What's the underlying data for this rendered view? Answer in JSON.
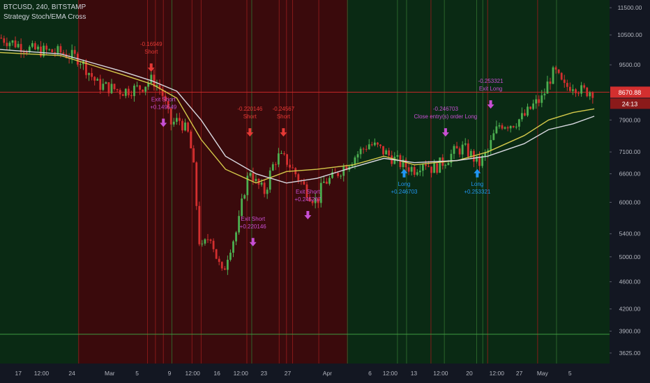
{
  "header": {
    "symbol_line": "BTCUSD, 240, BITSTAMP",
    "strategy_line": "Strategy Stoch/EMA Cross"
  },
  "colors": {
    "background": "#131722",
    "bull_zone": "#0a2a14",
    "bear_zone": "#3a0a0c",
    "candle_up": "#4caf50",
    "candle_down": "#d32f2f",
    "ema_fast": "#d4c94a",
    "ema_slow": "#d8d8e0",
    "annotation_short": "#e53935",
    "annotation_exit": "#c74fd3",
    "annotation_long": "#2196f3",
    "price_badge": "#d32f2f",
    "support_line": "#3f9a3f",
    "price_line": "#c62828",
    "axis_text": "#b2b5be"
  },
  "chart_data": {
    "type": "candlestick",
    "symbol": "BTCUSD",
    "timeframe": "240",
    "exchange": "BITSTAMP",
    "study": "Strategy Stoch/EMA Cross",
    "y_scale": "log",
    "ylim": [
      3500,
      11800
    ],
    "y_ticks": [
      "11500.00",
      "10500.00",
      "9500.00",
      "8670.88",
      "7900.00",
      "7100.00",
      "6600.00",
      "6000.00",
      "5400.00",
      "5000.00",
      "4600.00",
      "4200.00",
      "3900.00",
      "3625.00"
    ],
    "current_price": "8670.88",
    "countdown": "24:13",
    "x_ticks": [
      "17",
      "12:00",
      "24",
      "Mar",
      "5",
      "9",
      "12:00",
      "16",
      "12:00",
      "23",
      "27",
      "Apr",
      "6",
      "12:00",
      "13",
      "12:00",
      "20",
      "12:00",
      "27",
      "May",
      "5"
    ],
    "horizontal_lines": [
      {
        "price": 8670.88,
        "role": "last price"
      },
      {
        "price": 3860,
        "role": "support"
      }
    ],
    "zones": [
      {
        "from": 0,
        "to": 0.129,
        "color": "bull"
      },
      {
        "from": 0.129,
        "to": 0.571,
        "color": "bear"
      },
      {
        "from": 0.571,
        "to": 1.0,
        "color": "bull"
      }
    ],
    "trend_path": [
      [
        0,
        10400
      ],
      [
        0.05,
        10000
      ],
      [
        0.1,
        9900
      ],
      [
        0.13,
        9700
      ],
      [
        0.16,
        8900
      ],
      [
        0.2,
        8700
      ],
      [
        0.23,
        8800
      ],
      [
        0.25,
        9050
      ],
      [
        0.265,
        8700
      ],
      [
        0.28,
        7800
      ],
      [
        0.295,
        7900
      ],
      [
        0.31,
        7500
      ],
      [
        0.32,
        6500
      ],
      [
        0.325,
        5400
      ],
      [
        0.33,
        5100
      ],
      [
        0.345,
        5400
      ],
      [
        0.355,
        5000
      ],
      [
        0.365,
        4700
      ],
      [
        0.375,
        5100
      ],
      [
        0.39,
        5500
      ],
      [
        0.4,
        6200
      ],
      [
        0.41,
        6700
      ],
      [
        0.42,
        6400
      ],
      [
        0.435,
        6200
      ],
      [
        0.445,
        6700
      ],
      [
        0.455,
        7000
      ],
      [
        0.47,
        6900
      ],
      [
        0.49,
        6500
      ],
      [
        0.505,
        6200
      ],
      [
        0.52,
        6000
      ],
      [
        0.53,
        6400
      ],
      [
        0.545,
        6500
      ],
      [
        0.56,
        6700
      ],
      [
        0.575,
        6900
      ],
      [
        0.59,
        7100
      ],
      [
        0.605,
        7300
      ],
      [
        0.62,
        7200
      ],
      [
        0.64,
        7000
      ],
      [
        0.66,
        6800
      ],
      [
        0.68,
        6700
      ],
      [
        0.695,
        6900
      ],
      [
        0.71,
        6700
      ],
      [
        0.73,
        6900
      ],
      [
        0.745,
        7100
      ],
      [
        0.76,
        7200
      ],
      [
        0.775,
        7000
      ],
      [
        0.785,
        6800
      ],
      [
        0.8,
        7100
      ],
      [
        0.81,
        7500
      ],
      [
        0.82,
        7800
      ],
      [
        0.84,
        7800
      ],
      [
        0.86,
        8000
      ],
      [
        0.875,
        8300
      ],
      [
        0.89,
        8500
      ],
      [
        0.9,
        9000
      ],
      [
        0.91,
        9300
      ],
      [
        0.925,
        8800
      ],
      [
        0.94,
        8900
      ],
      [
        0.955,
        8700
      ],
      [
        0.97,
        8700
      ]
    ],
    "ema_fast_path": [
      [
        0,
        9900
      ],
      [
        0.1,
        9800
      ],
      [
        0.2,
        9200
      ],
      [
        0.25,
        8900
      ],
      [
        0.29,
        8500
      ],
      [
        0.33,
        7400
      ],
      [
        0.37,
        6700
      ],
      [
        0.42,
        6400
      ],
      [
        0.47,
        6650
      ],
      [
        0.52,
        6700
      ],
      [
        0.58,
        6800
      ],
      [
        0.63,
        7000
      ],
      [
        0.68,
        6800
      ],
      [
        0.75,
        6900
      ],
      [
        0.8,
        7100
      ],
      [
        0.86,
        7500
      ],
      [
        0.9,
        7900
      ],
      [
        0.94,
        8100
      ],
      [
        0.975,
        8200
      ]
    ],
    "ema_slow_path": [
      [
        0,
        10000
      ],
      [
        0.1,
        9850
      ],
      [
        0.2,
        9300
      ],
      [
        0.25,
        9000
      ],
      [
        0.29,
        8700
      ],
      [
        0.33,
        7900
      ],
      [
        0.37,
        7000
      ],
      [
        0.42,
        6600
      ],
      [
        0.47,
        6400
      ],
      [
        0.52,
        6500
      ],
      [
        0.58,
        6750
      ],
      [
        0.63,
        6950
      ],
      [
        0.68,
        6850
      ],
      [
        0.75,
        6900
      ],
      [
        0.8,
        7000
      ],
      [
        0.86,
        7300
      ],
      [
        0.9,
        7650
      ],
      [
        0.94,
        7800
      ],
      [
        0.975,
        8000
      ]
    ],
    "vertical_lines": [
      {
        "x": 0.129,
        "color": "red"
      },
      {
        "x": 0.242,
        "color": "red"
      },
      {
        "x": 0.255,
        "color": "red"
      },
      {
        "x": 0.268,
        "color": "red"
      },
      {
        "x": 0.282,
        "color": "green"
      },
      {
        "x": 0.315,
        "color": "red"
      },
      {
        "x": 0.33,
        "color": "red"
      },
      {
        "x": 0.405,
        "color": "red"
      },
      {
        "x": 0.413,
        "color": "green"
      },
      {
        "x": 0.458,
        "color": "red"
      },
      {
        "x": 0.47,
        "color": "red"
      },
      {
        "x": 0.48,
        "color": "red"
      },
      {
        "x": 0.523,
        "color": "red"
      },
      {
        "x": 0.57,
        "color": "green"
      },
      {
        "x": 0.652,
        "color": "green"
      },
      {
        "x": 0.667,
        "color": "green"
      },
      {
        "x": 0.707,
        "color": "red"
      },
      {
        "x": 0.729,
        "color": "green"
      },
      {
        "x": 0.782,
        "color": "green"
      },
      {
        "x": 0.792,
        "color": "green"
      },
      {
        "x": 0.8,
        "color": "red"
      },
      {
        "x": 0.882,
        "color": "red"
      },
      {
        "x": 0.913,
        "color": "green"
      }
    ],
    "annotations": [
      {
        "x": 0.248,
        "price": 9500,
        "kind": "short",
        "lines": [
          "-0.16949",
          "Short"
        ]
      },
      {
        "x": 0.268,
        "price": 7900,
        "kind": "exit",
        "lines": [
          "Exit Short",
          "+0.149549"
        ]
      },
      {
        "x": 0.41,
        "price": 7650,
        "kind": "short",
        "lines": [
          "-0.220146",
          "Short"
        ]
      },
      {
        "x": 0.415,
        "price": 5300,
        "kind": "exit",
        "lines": [
          "Exit Short",
          "+0.220146"
        ]
      },
      {
        "x": 0.465,
        "price": 7650,
        "kind": "short",
        "lines": [
          "-0.24567",
          "Short"
        ]
      },
      {
        "x": 0.505,
        "price": 5800,
        "kind": "exit",
        "lines": [
          "Exit Short",
          "+0.245267"
        ]
      },
      {
        "x": 0.663,
        "price": 6520,
        "kind": "long",
        "lines": [
          "Long",
          "+0.246703"
        ]
      },
      {
        "x": 0.731,
        "price": 7650,
        "kind": "exit",
        "lines": [
          "-0.246703",
          "Close entry(s) order Long"
        ]
      },
      {
        "x": 0.783,
        "price": 6520,
        "kind": "long",
        "lines": [
          "Long",
          "+0.253321"
        ]
      },
      {
        "x": 0.805,
        "price": 8400,
        "kind": "exit",
        "lines": [
          "-0.253321",
          "Exit Long"
        ]
      }
    ]
  }
}
